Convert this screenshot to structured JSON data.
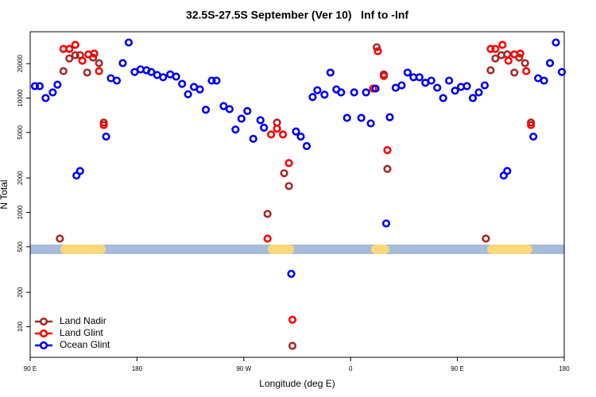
{
  "chart_data": {
    "type": "scatter",
    "title": "32.5S-27.5S September (Ver 10)   Inf to -Inf",
    "xlabel": "Longitude (deg E)",
    "ylabel": "N Total",
    "xlim": [
      90,
      540
    ],
    "xticks": [
      {
        "value": 90,
        "label": "90 E"
      },
      {
        "value": 180,
        "label": "180"
      },
      {
        "value": 270,
        "label": "90 W"
      },
      {
        "value": 360,
        "label": "0"
      },
      {
        "value": 450,
        "label": "90 E"
      },
      {
        "value": 540,
        "label": "180"
      }
    ],
    "ylim": [
      54,
      38000
    ],
    "yticks": [
      100,
      200,
      500,
      1000,
      2000,
      5000,
      10000,
      20000
    ],
    "log_y": true,
    "legend": "bottom-left",
    "series": [
      {
        "name": "Land Nadir",
        "color": "#a52a2a",
        "x": [
          115,
          118,
          123,
          128,
          132,
          138,
          143,
          148,
          152,
          290,
          298,
          304,
          308,
          311,
          382,
          388,
          391,
          474,
          478,
          482,
          487,
          492,
          498,
          502,
          507,
          512
        ],
        "values": [
          590,
          17200,
          22200,
          23700,
          23700,
          16700,
          22600,
          20200,
          6100,
          970,
          6100,
          2200,
          1700,
          68,
          27800,
          16100,
          2400,
          590,
          17500,
          22200,
          23700,
          24100,
          16700,
          22600,
          20200,
          6100
        ]
      },
      {
        "name": "Land Glint",
        "color": "#ff0000",
        "x": [
          118,
          123,
          128,
          134,
          139,
          144,
          148,
          152,
          290,
          293,
          298,
          303,
          308,
          311,
          379,
          383,
          388,
          391,
          478,
          482,
          488,
          493,
          498,
          503,
          508,
          512
        ],
        "values": [
          26900,
          26900,
          29200,
          21200,
          24100,
          24500,
          17200,
          5800,
          590,
          4800,
          5400,
          4800,
          2700,
          115,
          12100,
          25700,
          15600,
          3500,
          26900,
          26900,
          29200,
          21200,
          24100,
          24500,
          17200,
          5800
        ]
      },
      {
        "name": "Ocean Glint",
        "color": "#0000ee",
        "x": [
          94,
          98,
          103,
          109,
          113,
          129,
          132,
          154,
          158,
          163,
          168,
          173,
          178,
          183,
          188,
          192,
          197,
          202,
          208,
          213,
          218,
          223,
          228,
          233,
          238,
          243,
          247,
          253,
          258,
          263,
          268,
          273,
          278,
          284,
          287,
          310,
          314,
          318,
          323,
          328,
          332,
          338,
          343,
          348,
          352,
          357,
          363,
          369,
          373,
          377,
          381,
          390,
          393,
          398,
          403,
          408,
          413,
          418,
          423,
          428,
          433,
          438,
          443,
          448,
          453,
          458,
          463,
          468,
          473,
          489,
          492,
          514,
          518,
          523,
          528,
          533,
          538
        ],
        "values": [
          12700,
          12700,
          10000,
          11200,
          13100,
          2100,
          2300,
          4600,
          14900,
          14200,
          20200,
          30600,
          16900,
          17800,
          17500,
          16900,
          15900,
          15200,
          16100,
          15400,
          13300,
          10800,
          12500,
          11900,
          7900,
          14200,
          14200,
          8500,
          8000,
          5300,
          6600,
          7700,
          4400,
          6400,
          5500,
          290,
          5100,
          4600,
          3800,
          10200,
          11700,
          10700,
          16700,
          11900,
          11200,
          6700,
          11200,
          6700,
          11200,
          6000,
          12100,
          800,
          6800,
          12300,
          12900,
          16700,
          15200,
          15200,
          13600,
          14200,
          12300,
          10000,
          14200,
          11600,
          12500,
          12700,
          10000,
          11200,
          12900,
          2100,
          2300,
          4600,
          14900,
          14200,
          20200,
          30600,
          16900
        ]
      }
    ]
  }
}
